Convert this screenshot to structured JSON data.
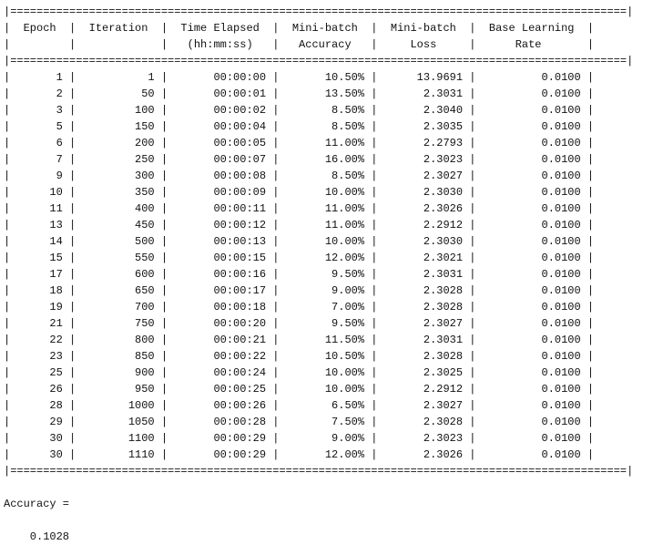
{
  "table": {
    "separator": "|==============================================================================================|",
    "header_line_1": "|  Epoch  |  Iteration  |  Time Elapsed  |  Mini-batch  |  Mini-batch  |  Base Learning  |",
    "header_line_2": "|         |             |   (hh:mm:ss)   |   Accuracy   |     Loss     |      Rate       |",
    "columns": [
      "Epoch",
      "Iteration",
      "Time Elapsed (hh:mm:ss)",
      "Mini-batch Accuracy",
      "Mini-batch Loss",
      "Base Learning Rate"
    ],
    "rows": [
      {
        "epoch": "1",
        "iteration": "1",
        "time": "00:00:00",
        "accuracy": "10.50%",
        "loss": "13.9691",
        "lr": "0.0100"
      },
      {
        "epoch": "2",
        "iteration": "50",
        "time": "00:00:01",
        "accuracy": "13.50%",
        "loss": "2.3031",
        "lr": "0.0100"
      },
      {
        "epoch": "3",
        "iteration": "100",
        "time": "00:00:02",
        "accuracy": "8.50%",
        "loss": "2.3040",
        "lr": "0.0100"
      },
      {
        "epoch": "5",
        "iteration": "150",
        "time": "00:00:04",
        "accuracy": "8.50%",
        "loss": "2.3035",
        "lr": "0.0100"
      },
      {
        "epoch": "6",
        "iteration": "200",
        "time": "00:00:05",
        "accuracy": "11.00%",
        "loss": "2.2793",
        "lr": "0.0100"
      },
      {
        "epoch": "7",
        "iteration": "250",
        "time": "00:00:07",
        "accuracy": "16.00%",
        "loss": "2.3023",
        "lr": "0.0100"
      },
      {
        "epoch": "9",
        "iteration": "300",
        "time": "00:00:08",
        "accuracy": "8.50%",
        "loss": "2.3027",
        "lr": "0.0100"
      },
      {
        "epoch": "10",
        "iteration": "350",
        "time": "00:00:09",
        "accuracy": "10.00%",
        "loss": "2.3030",
        "lr": "0.0100"
      },
      {
        "epoch": "11",
        "iteration": "400",
        "time": "00:00:11",
        "accuracy": "11.00%",
        "loss": "2.3026",
        "lr": "0.0100"
      },
      {
        "epoch": "13",
        "iteration": "450",
        "time": "00:00:12",
        "accuracy": "11.00%",
        "loss": "2.2912",
        "lr": "0.0100"
      },
      {
        "epoch": "14",
        "iteration": "500",
        "time": "00:00:13",
        "accuracy": "10.00%",
        "loss": "2.3030",
        "lr": "0.0100"
      },
      {
        "epoch": "15",
        "iteration": "550",
        "time": "00:00:15",
        "accuracy": "12.00%",
        "loss": "2.3021",
        "lr": "0.0100"
      },
      {
        "epoch": "17",
        "iteration": "600",
        "time": "00:00:16",
        "accuracy": "9.50%",
        "loss": "2.3031",
        "lr": "0.0100"
      },
      {
        "epoch": "18",
        "iteration": "650",
        "time": "00:00:17",
        "accuracy": "9.00%",
        "loss": "2.3028",
        "lr": "0.0100"
      },
      {
        "epoch": "19",
        "iteration": "700",
        "time": "00:00:18",
        "accuracy": "7.00%",
        "loss": "2.3028",
        "lr": "0.0100"
      },
      {
        "epoch": "21",
        "iteration": "750",
        "time": "00:00:20",
        "accuracy": "9.50%",
        "loss": "2.3027",
        "lr": "0.0100"
      },
      {
        "epoch": "22",
        "iteration": "800",
        "time": "00:00:21",
        "accuracy": "11.50%",
        "loss": "2.3031",
        "lr": "0.0100"
      },
      {
        "epoch": "23",
        "iteration": "850",
        "time": "00:00:22",
        "accuracy": "10.50%",
        "loss": "2.3028",
        "lr": "0.0100"
      },
      {
        "epoch": "25",
        "iteration": "900",
        "time": "00:00:24",
        "accuracy": "10.00%",
        "loss": "2.3025",
        "lr": "0.0100"
      },
      {
        "epoch": "26",
        "iteration": "950",
        "time": "00:00:25",
        "accuracy": "10.00%",
        "loss": "2.2912",
        "lr": "0.0100"
      },
      {
        "epoch": "28",
        "iteration": "1000",
        "time": "00:00:26",
        "accuracy": "6.50%",
        "loss": "2.3027",
        "lr": "0.0100"
      },
      {
        "epoch": "29",
        "iteration": "1050",
        "time": "00:00:28",
        "accuracy": "7.50%",
        "loss": "2.3028",
        "lr": "0.0100"
      },
      {
        "epoch": "30",
        "iteration": "1100",
        "time": "00:00:29",
        "accuracy": "9.00%",
        "loss": "2.3023",
        "lr": "0.0100"
      },
      {
        "epoch": "30",
        "iteration": "1110",
        "time": "00:00:29",
        "accuracy": "12.00%",
        "loss": "2.3026",
        "lr": "0.0100"
      }
    ]
  },
  "result": {
    "label": "Accuracy =",
    "value": "    0.1028"
  }
}
